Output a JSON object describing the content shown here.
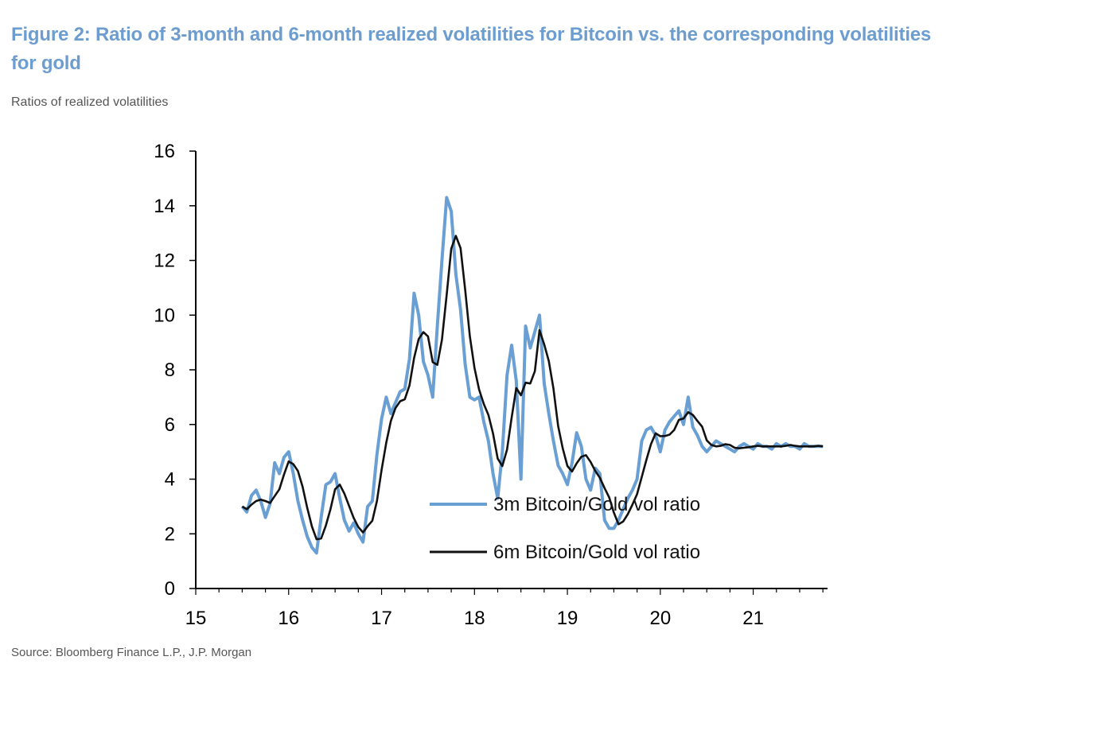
{
  "figure": {
    "title": "Figure 2: Ratio of 3-month and 6-month realized volatilities for Bitcoin vs. the corresponding volatilities for gold",
    "subtitle": "Ratios of realized volatilities",
    "source": "Source: Bloomberg Finance L.P., J.P. Morgan"
  },
  "chart_data": {
    "type": "line",
    "title": "",
    "xlabel": "",
    "ylabel": "",
    "xlim": [
      15,
      21.8
    ],
    "ylim": [
      0,
      16
    ],
    "x_ticks": [
      "15",
      "16",
      "17",
      "18",
      "19",
      "20",
      "21"
    ],
    "y_ticks": [
      "0",
      "2",
      "4",
      "6",
      "8",
      "10",
      "12",
      "14",
      "16"
    ],
    "grid": false,
    "legend_position": "bottom-center",
    "series": [
      {
        "name": "3m Bitcoin/Gold vol ratio",
        "color": "#6a9fd4",
        "x": [
          15.5,
          15.55,
          15.6,
          15.65,
          15.7,
          15.75,
          15.8,
          15.85,
          15.9,
          15.95,
          16.0,
          16.05,
          16.1,
          16.15,
          16.2,
          16.25,
          16.3,
          16.35,
          16.4,
          16.45,
          16.5,
          16.55,
          16.6,
          16.65,
          16.7,
          16.75,
          16.8,
          16.85,
          16.9,
          16.95,
          17.0,
          17.05,
          17.1,
          17.15,
          17.2,
          17.25,
          17.3,
          17.35,
          17.4,
          17.45,
          17.5,
          17.55,
          17.6,
          17.65,
          17.7,
          17.75,
          17.8,
          17.85,
          17.9,
          17.95,
          18.0,
          18.05,
          18.1,
          18.15,
          18.2,
          18.25,
          18.3,
          18.35,
          18.4,
          18.45,
          18.5,
          18.55,
          18.6,
          18.65,
          18.7,
          18.75,
          18.8,
          18.85,
          18.9,
          18.95,
          19.0,
          19.05,
          19.1,
          19.15,
          19.2,
          19.25,
          19.3,
          19.35,
          19.4,
          19.45,
          19.5,
          19.55,
          19.6,
          19.65,
          19.7,
          19.75,
          19.8,
          19.85,
          19.9,
          19.95,
          20.0,
          20.05,
          20.1,
          20.15,
          20.2,
          20.25,
          20.3,
          20.35,
          20.4,
          20.45,
          20.5,
          20.55,
          20.6,
          20.65,
          20.7,
          20.75,
          20.8,
          20.85,
          20.9,
          20.95,
          21.0,
          21.05,
          21.1,
          21.15,
          21.2,
          21.25,
          21.3,
          21.35,
          21.4,
          21.45,
          21.5,
          21.55,
          21.6,
          21.65,
          21.7,
          21.75
        ],
        "y": [
          3.0,
          2.8,
          3.4,
          3.6,
          3.2,
          2.6,
          3.1,
          4.6,
          4.2,
          4.8,
          5.0,
          4.2,
          3.2,
          2.5,
          1.9,
          1.5,
          1.3,
          2.6,
          3.8,
          3.9,
          4.2,
          3.3,
          2.5,
          2.1,
          2.4,
          2.0,
          1.7,
          3.0,
          3.2,
          4.9,
          6.2,
          7.0,
          6.4,
          6.8,
          7.2,
          7.3,
          8.4,
          10.8,
          10.0,
          8.3,
          7.8,
          7.0,
          9.6,
          12.0,
          14.3,
          13.8,
          11.5,
          10.2,
          8.2,
          7.0,
          6.9,
          7.0,
          6.1,
          5.4,
          4.2,
          3.3,
          5.0,
          7.8,
          8.9,
          7.6,
          4.0,
          9.6,
          8.8,
          9.4,
          10.0,
          7.5,
          6.4,
          5.4,
          4.5,
          4.2,
          3.8,
          4.6,
          5.7,
          5.2,
          4.0,
          3.6,
          4.4,
          4.2,
          2.5,
          2.2,
          2.2,
          2.5,
          2.9,
          3.3,
          3.6,
          4.0,
          5.4,
          5.8,
          5.9,
          5.6,
          5.0,
          5.8,
          6.1,
          6.3,
          6.5,
          6.0,
          7.0,
          5.9,
          5.6,
          5.2,
          5.0,
          5.2,
          5.4,
          5.3,
          5.2,
          5.1,
          5.0,
          5.2,
          5.3,
          5.2,
          5.1,
          5.3,
          5.2,
          5.2,
          5.1,
          5.3,
          5.2,
          5.3,
          5.2,
          5.2,
          5.1,
          5.3,
          5.2,
          5.2,
          5.2,
          5.2
        ],
        "values_note": ""
      },
      {
        "name": "6m Bitcoin/Gold vol ratio",
        "color": "#111111",
        "x": [],
        "y": []
      }
    ]
  }
}
